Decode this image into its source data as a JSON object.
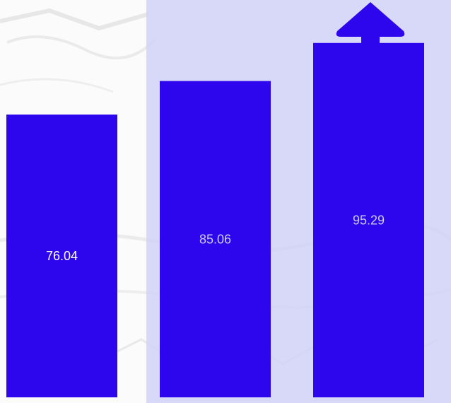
{
  "chart_data": {
    "type": "bar",
    "categories": [
      "",
      "",
      ""
    ],
    "values": [
      76.04,
      85.06,
      95.29
    ],
    "labels": [
      "76.04",
      "85.06",
      "95.29"
    ],
    "ylim": [
      0,
      100
    ],
    "grid": false,
    "legend": "none",
    "title": "",
    "xlabel": "",
    "ylabel": "",
    "bar_color": "#2d06ee",
    "highlight_color": "#d1d1f7",
    "label_colors": [
      "#ffffff",
      "#ccccf2",
      "#ccccf2"
    ],
    "trend": "up-arrow"
  }
}
